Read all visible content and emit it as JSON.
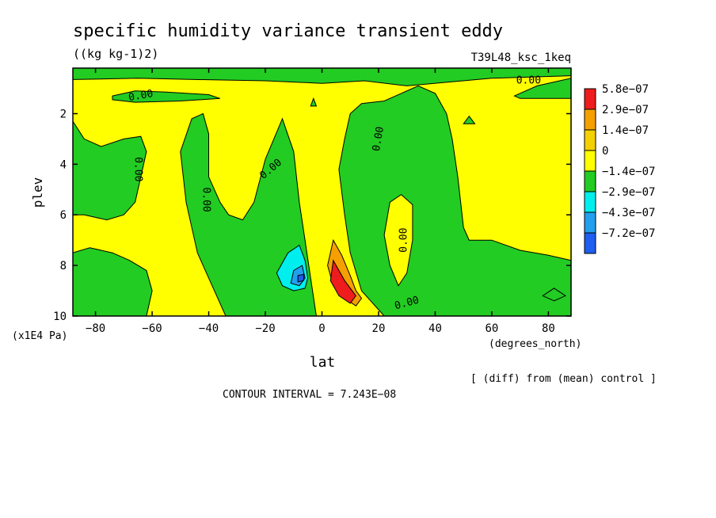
{
  "chart_data": {
    "type": "heatmap",
    "title": "specific humidity variance transient eddy",
    "units": "((kg kg-1)2)",
    "run_label": "T39L48_ksc_1keq",
    "xlabel": "lat",
    "x_units": "(degrees_north)",
    "ylabel": "plev",
    "y_units": "(x1E4 Pa)",
    "xlim": [
      -88,
      88
    ],
    "ylim": [
      10,
      0.2
    ],
    "x_ticks": [
      {
        "value": -80,
        "label": "−80"
      },
      {
        "value": -60,
        "label": "−60"
      },
      {
        "value": -40,
        "label": "−40"
      },
      {
        "value": -20,
        "label": "−20"
      },
      {
        "value": 0,
        "label": "0"
      },
      {
        "value": 20,
        "label": "20"
      },
      {
        "value": 40,
        "label": "40"
      },
      {
        "value": 60,
        "label": "60"
      },
      {
        "value": 80,
        "label": "80"
      }
    ],
    "y_ticks": [
      {
        "value": 2,
        "label": "2"
      },
      {
        "value": 4,
        "label": "4"
      },
      {
        "value": 6,
        "label": "6"
      },
      {
        "value": 8,
        "label": "8"
      },
      {
        "value": 10,
        "label": "10"
      }
    ],
    "legend": {
      "placement": "right",
      "entries": [
        {
          "label": "5.8e−07",
          "color": "#ee1c1c"
        },
        {
          "label": "2.9e−07",
          "color": "#f5a000"
        },
        {
          "label": "1.4e−07",
          "color": "#f5d000"
        },
        {
          "label": "0",
          "color": "#ffff00"
        },
        {
          "label": "−1.4e−07",
          "color": "#22cc22"
        },
        {
          "label": "−2.9e−07",
          "color": "#00eeee"
        },
        {
          "label": "−4.3e−07",
          "color": "#22a0ee"
        },
        {
          "label": "−7.2e−07",
          "color": "#1e5ef0"
        }
      ]
    },
    "background_color": "#ffff00",
    "regions": [
      {
        "name": "green-top-strip",
        "color": "#22cc22",
        "points": [
          [
            -88,
            0.2
          ],
          [
            88,
            0.2
          ],
          [
            88,
            0.5
          ],
          [
            60,
            0.6
          ],
          [
            30,
            0.9
          ],
          [
            15,
            0.7
          ],
          [
            0,
            0.8
          ],
          [
            -20,
            0.7
          ],
          [
            -45,
            0.65
          ],
          [
            -65,
            0.6
          ],
          [
            -88,
            0.65
          ]
        ]
      },
      {
        "name": "green-upper-left-blob",
        "color": "#22cc22",
        "points": [
          [
            -74,
            1.3
          ],
          [
            -66,
            1.1
          ],
          [
            -55,
            1.15
          ],
          [
            -40,
            1.25
          ],
          [
            -36,
            1.4
          ],
          [
            -50,
            1.5
          ],
          [
            -66,
            1.55
          ],
          [
            -74,
            1.45
          ]
        ]
      },
      {
        "name": "green-nh-upper-blob",
        "color": "#22cc22",
        "points": [
          [
            68,
            1.3
          ],
          [
            76,
            0.9
          ],
          [
            88,
            0.6
          ],
          [
            88,
            1.4
          ],
          [
            70,
            1.4
          ]
        ]
      },
      {
        "name": "green-sh-tongue",
        "color": "#22cc22",
        "points": [
          [
            -88,
            2.3
          ],
          [
            -84,
            3.0
          ],
          [
            -78,
            3.3
          ],
          [
            -70,
            3.0
          ],
          [
            -64,
            2.9
          ],
          [
            -62,
            3.5
          ],
          [
            -64,
            4.5
          ],
          [
            -66,
            5.5
          ],
          [
            -70,
            6.0
          ],
          [
            -76,
            6.2
          ],
          [
            -84,
            6.0
          ],
          [
            -88,
            6.0
          ]
        ]
      },
      {
        "name": "green-sh-lower",
        "color": "#22cc22",
        "points": [
          [
            -88,
            7.5
          ],
          [
            -82,
            7.3
          ],
          [
            -74,
            7.5
          ],
          [
            -68,
            7.8
          ],
          [
            -62,
            8.2
          ],
          [
            -60,
            9.0
          ],
          [
            -62,
            10
          ],
          [
            -88,
            10
          ]
        ]
      },
      {
        "name": "green-mid-column",
        "color": "#22cc22",
        "points": [
          [
            -50,
            3.5
          ],
          [
            -46,
            2.2
          ],
          [
            -42,
            2.0
          ],
          [
            -40,
            2.8
          ],
          [
            -40,
            4.5
          ],
          [
            -36,
            5.5
          ],
          [
            -33,
            6.0
          ],
          [
            -28,
            6.2
          ],
          [
            -24,
            5.5
          ],
          [
            -20,
            3.8
          ],
          [
            -14,
            2.2
          ],
          [
            -10,
            3.5
          ],
          [
            -8,
            5.5
          ],
          [
            -6,
            7.0
          ],
          [
            -4,
            8.5
          ],
          [
            -2,
            10
          ],
          [
            -34,
            10
          ],
          [
            -40,
            8.5
          ],
          [
            -44,
            7.5
          ],
          [
            -46,
            6.5
          ],
          [
            -48,
            5.5
          ]
        ]
      },
      {
        "name": "green-nh-column",
        "color": "#22cc22",
        "points": [
          [
            6,
            4.2
          ],
          [
            8,
            3.0
          ],
          [
            10,
            2.0
          ],
          [
            14,
            1.6
          ],
          [
            22,
            1.5
          ],
          [
            28,
            1.2
          ],
          [
            34,
            0.9
          ],
          [
            40,
            1.2
          ],
          [
            44,
            2.0
          ],
          [
            46,
            3.0
          ],
          [
            48,
            4.5
          ],
          [
            50,
            6.5
          ],
          [
            52,
            7.0
          ],
          [
            60,
            7.0
          ],
          [
            70,
            7.4
          ],
          [
            80,
            7.6
          ],
          [
            88,
            7.8
          ],
          [
            88,
            10
          ],
          [
            22,
            10
          ],
          [
            18,
            9.5
          ],
          [
            14,
            9.0
          ],
          [
            10,
            7.5
          ],
          [
            8,
            6.0
          ]
        ]
      },
      {
        "name": "yellow-nh-hole",
        "color": "#ffff00",
        "points": [
          [
            24,
            5.5
          ],
          [
            28,
            5.2
          ],
          [
            32,
            5.6
          ],
          [
            32,
            7.0
          ],
          [
            30,
            8.3
          ],
          [
            27,
            8.8
          ],
          [
            24,
            8.0
          ],
          [
            22,
            6.8
          ]
        ]
      },
      {
        "name": "orange-positive",
        "color": "#f5a000",
        "points": [
          [
            4,
            7.0
          ],
          [
            7,
            7.6
          ],
          [
            10,
            8.4
          ],
          [
            12,
            9.0
          ],
          [
            14,
            9.3
          ],
          [
            12,
            9.6
          ],
          [
            8,
            9.3
          ],
          [
            4,
            8.8
          ],
          [
            2,
            8.0
          ]
        ]
      },
      {
        "name": "red-positive-core",
        "color": "#ee1c1c",
        "points": [
          [
            4,
            7.8
          ],
          [
            8,
            8.6
          ],
          [
            12,
            9.2
          ],
          [
            10,
            9.5
          ],
          [
            6,
            9.2
          ],
          [
            3,
            8.6
          ]
        ]
      },
      {
        "name": "cyan-negative",
        "color": "#00eeee",
        "points": [
          [
            -16,
            8.3
          ],
          [
            -12,
            7.5
          ],
          [
            -8,
            7.2
          ],
          [
            -6,
            7.8
          ],
          [
            -5,
            8.5
          ],
          [
            -6,
            8.9
          ],
          [
            -10,
            9.0
          ],
          [
            -14,
            8.8
          ]
        ]
      },
      {
        "name": "blue-negative-core",
        "color": "#22a0ee",
        "points": [
          [
            -10,
            8.2
          ],
          [
            -7,
            8.0
          ],
          [
            -6,
            8.5
          ],
          [
            -8,
            8.8
          ],
          [
            -11,
            8.7
          ]
        ]
      },
      {
        "name": "dark-blue-negative-core",
        "color": "#1e5ef0",
        "points": [
          [
            -8.5,
            8.4
          ],
          [
            -6.5,
            8.35
          ],
          [
            -6.5,
            8.6
          ],
          [
            -8.5,
            8.65
          ]
        ]
      },
      {
        "name": "green-small-mid",
        "color": "#22cc22",
        "points": [
          [
            -4,
            1.7
          ],
          [
            -3,
            1.4
          ],
          [
            -2,
            1.7
          ]
        ]
      },
      {
        "name": "green-small-nh",
        "color": "#22cc22",
        "points": [
          [
            50,
            2.4
          ],
          [
            52,
            2.1
          ],
          [
            54,
            2.4
          ]
        ]
      },
      {
        "name": "green-small-low",
        "color": "#22cc22",
        "points": [
          [
            78,
            9.2
          ],
          [
            82,
            8.9
          ],
          [
            86,
            9.2
          ],
          [
            82,
            9.4
          ]
        ]
      }
    ],
    "contour_labels": [
      {
        "text": "0.00",
        "x": -64,
        "y": 1.3,
        "angle": -10
      },
      {
        "text": "0.00",
        "x": 73,
        "y": 0.7,
        "angle": 0
      },
      {
        "text": "0.00",
        "x": -65,
        "y": 4.2,
        "angle": 90
      },
      {
        "text": "0.00",
        "x": -41,
        "y": 5.4,
        "angle": 90
      },
      {
        "text": "0.00",
        "x": -18,
        "y": 4.2,
        "angle": -40
      },
      {
        "text": "0.00",
        "x": 20,
        "y": 3.0,
        "angle": -80
      },
      {
        "text": "0.00",
        "x": 29,
        "y": 7.0,
        "angle": -90
      },
      {
        "text": "0.00",
        "x": 30,
        "y": 9.5,
        "angle": -15
      }
    ],
    "annotations": {
      "diff_note": "[ (diff) from (mean) control ]",
      "contour_interval": "CONTOUR INTERVAL = 7.243E−08"
    }
  }
}
